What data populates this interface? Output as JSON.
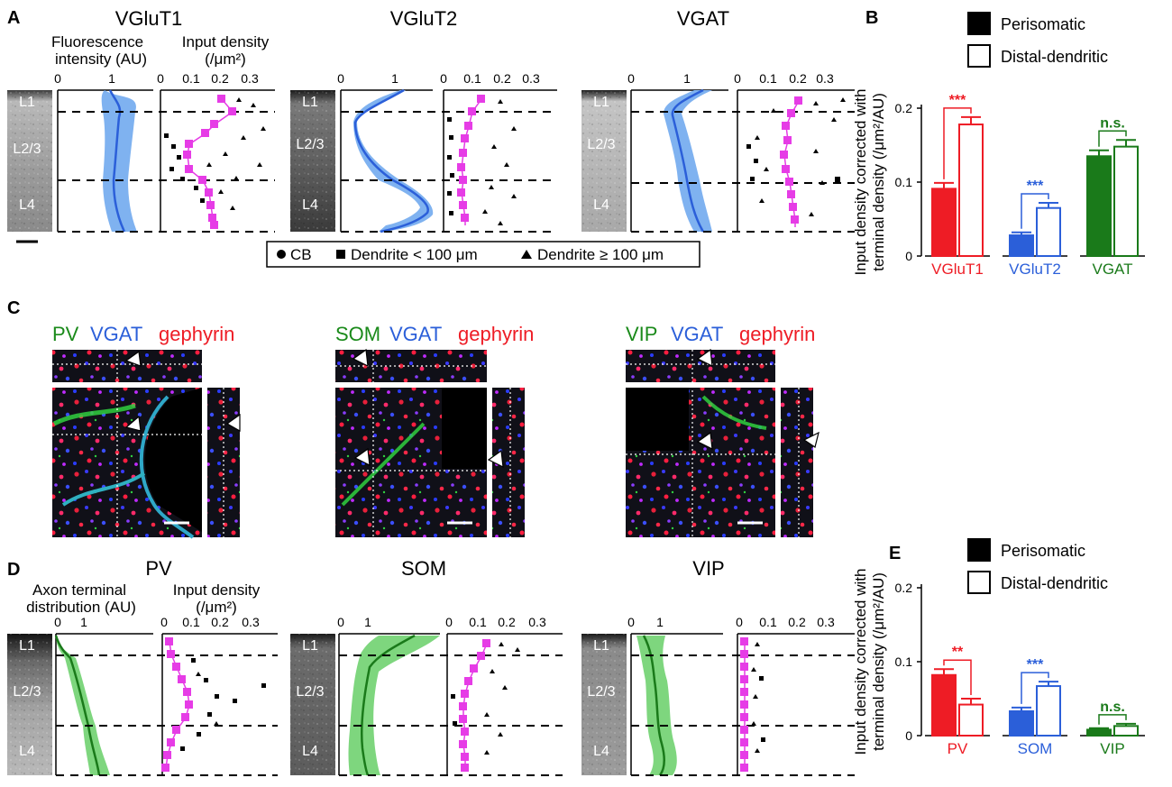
{
  "figure": {
    "panel_labels": [
      "A",
      "B",
      "C",
      "D",
      "E"
    ],
    "layers": [
      "L1",
      "L2/3",
      "L4"
    ],
    "legend_symbols": [
      "CB",
      "Dendrite < 100 μm",
      "Dendrite ≥ 100 μm"
    ],
    "panel_a": {
      "groups": [
        "VGluT1",
        "VGluT2",
        "VGAT"
      ],
      "fluor_label_1": "Fluorescence",
      "fluor_label_2": "intensity (AU)",
      "density_label_1": "Input density",
      "density_label_2": "(/μm²)",
      "fluor_ticks": [
        "0",
        "1"
      ],
      "fluor_ticks_vglut2": [
        "0",
        "1"
      ],
      "density_ticks": [
        "0",
        "0.1",
        "0.2",
        "0.3"
      ]
    },
    "panel_c": {
      "groups": [
        {
          "first": "PV",
          "vgat": "VGAT",
          "geph": "gephyrin"
        },
        {
          "first": "SOM",
          "vgat": "VGAT",
          "geph": "gephyrin"
        },
        {
          "first": "VIP",
          "vgat": "VGAT",
          "geph": "gephyrin"
        }
      ]
    },
    "panel_d": {
      "groups": [
        "PV",
        "SOM",
        "VIP"
      ],
      "axon_label_1": "Axon terminal",
      "axon_label_2": "distribution (AU)",
      "density_label_1": "Input density",
      "density_label_2": "(/μm²)",
      "axon_ticks": [
        "0",
        "1"
      ],
      "density_ticks": [
        "0",
        "0.1",
        "0.2",
        "0.3"
      ]
    },
    "colors": {
      "red": "#ee1c25",
      "blue": "#2b5fd9",
      "green": "#1a7a1a",
      "magenta": "#e63ce6",
      "lightblue": "#7fb2f0",
      "lightgreen": "#7ed67e"
    }
  },
  "chart_data": [
    {
      "type": "bar",
      "panel": "B",
      "ylabel": "Input density corrected with terminal density (/μm²/AU)",
      "ylim": [
        0,
        0.2
      ],
      "yticks": [
        "0",
        "0.1",
        "0.2"
      ],
      "legend": [
        "Perisomatic",
        "Distal-dendritic"
      ],
      "categories": [
        "VGluT1",
        "VGluT2",
        "VGAT"
      ],
      "series": [
        {
          "name": "Perisomatic",
          "values": [
            0.091,
            0.028,
            0.135
          ],
          "errors": [
            0.008,
            0.004,
            0.008
          ]
        },
        {
          "name": "Distal-dendritic",
          "values": [
            0.178,
            0.065,
            0.148
          ],
          "errors": [
            0.01,
            0.007,
            0.009
          ]
        }
      ],
      "significance": [
        "***",
        "***",
        "n.s."
      ]
    },
    {
      "type": "bar",
      "panel": "E",
      "ylabel": "Input density corrected with terminal density (/μm²/AU)",
      "ylim": [
        0,
        0.2
      ],
      "yticks": [
        "0",
        "0.1",
        "0.2"
      ],
      "legend": [
        "Perisomatic",
        "Distal-dendritic"
      ],
      "categories": [
        "PV",
        "SOM",
        "VIP"
      ],
      "series": [
        {
          "name": "Perisomatic",
          "values": [
            0.082,
            0.033,
            0.008
          ],
          "errors": [
            0.008,
            0.005,
            0.002
          ]
        },
        {
          "name": "Distal-dendritic",
          "values": [
            0.042,
            0.067,
            0.013
          ],
          "errors": [
            0.008,
            0.006,
            0.003
          ]
        }
      ],
      "significance": [
        "**",
        "***",
        "n.s."
      ]
    }
  ]
}
